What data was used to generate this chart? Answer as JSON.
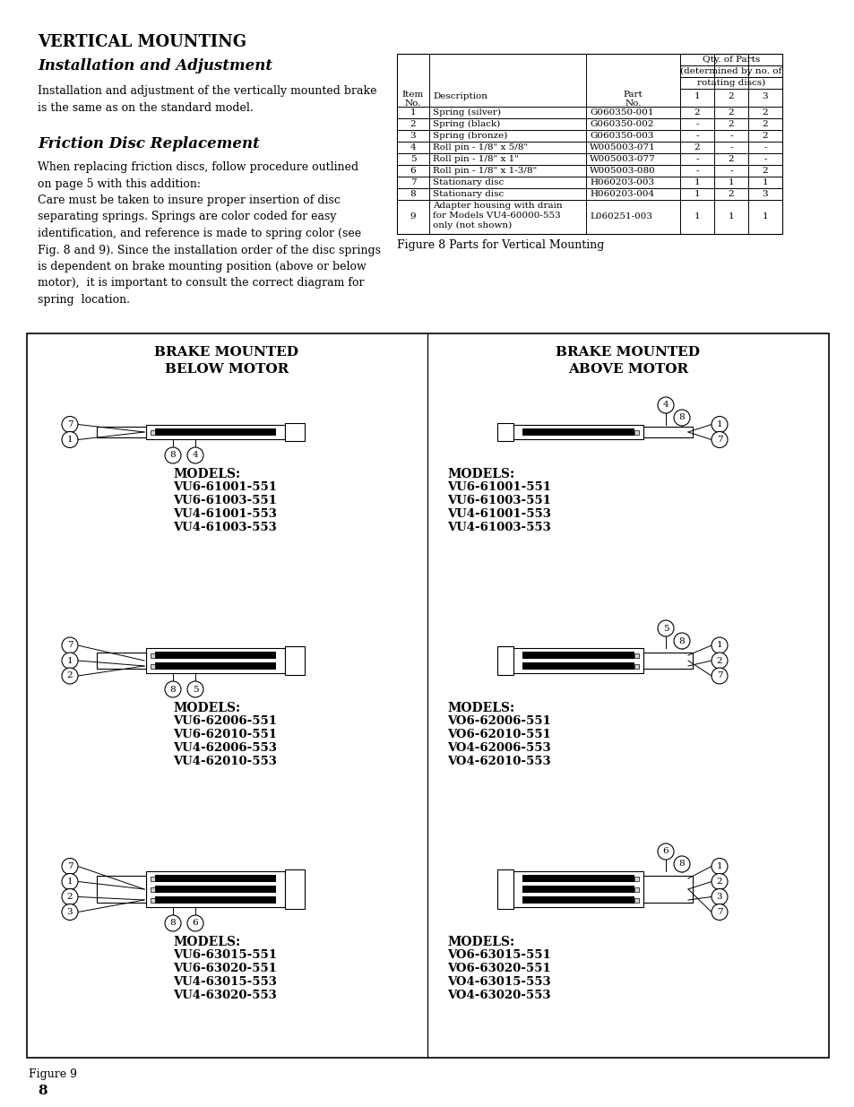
{
  "page_bg": "#ffffff",
  "title1": "VERTICAL MOUNTING",
  "title2": "Installation and Adjustment",
  "para1": "Installation and adjustment of the vertically mounted brake\nis the same as on the standard model.",
  "friction_title": "Friction Disc Replacement",
  "friction_para": "When replacing friction discs, follow procedure outlined\non page 5 with this addition:\nCare must be taken to insure proper insertion of disc\nseparating springs. Springs are color coded for easy\nidentification, and reference is made to spring color (see\nFig. 8 and 9). Since the installation order of the disc springs\nis dependent on brake mounting position (above or below\nmotor),  it is important to consult the correct diagram for\nspring  location.",
  "table_rows": [
    [
      "1",
      "Spring (silver)",
      "G060350-001",
      "2",
      "2",
      "2"
    ],
    [
      "2",
      "Spring (black)",
      "G060350-002",
      "-",
      "2",
      "2"
    ],
    [
      "3",
      "Spring (bronze)",
      "G060350-003",
      "-",
      "-",
      "2"
    ],
    [
      "4",
      "Roll pin - 1/8\" x 5/8\"",
      "W005003-071",
      "2",
      "-",
      "-"
    ],
    [
      "5",
      "Roll pin - 1/8\" x 1\"",
      "W005003-077",
      "-",
      "2",
      "-"
    ],
    [
      "6",
      "Roll pin - 1/8\" x 1-3/8\"",
      "W005003-080",
      "-",
      "-",
      "2"
    ],
    [
      "7",
      "Stationary disc",
      "H060203-003",
      "1",
      "1",
      "1"
    ],
    [
      "8",
      "Stationary disc",
      "H060203-004",
      "1",
      "2",
      "3"
    ],
    [
      "9",
      "Adapter housing with drain\nfor Models VU4-60000-553\nonly (not shown)",
      "L060251-003",
      "1",
      "1",
      "1"
    ]
  ],
  "fig8_caption": "Figure 8 Parts for Vertical Mounting",
  "fig9_caption": "Figure 9",
  "page_number": "8",
  "left_groups": [
    {
      "callouts_left": [
        "7",
        "1"
      ],
      "callout_spring": "4",
      "models": [
        "VU6-61001-551",
        "VU6-61003-551",
        "VU4-61001-553",
        "VU4-61003-553"
      ],
      "disc_count": 1
    },
    {
      "callouts_left": [
        "7",
        "1",
        "2"
      ],
      "callout_spring": "5",
      "models": [
        "VU6-62006-551",
        "VU6-62010-551",
        "VU4-62006-553",
        "VU4-62010-553"
      ],
      "disc_count": 2
    },
    {
      "callouts_left": [
        "7",
        "1",
        "2",
        "3"
      ],
      "callout_spring": "6",
      "models": [
        "VU6-63015-551",
        "VU6-63020-551",
        "VU4-63015-553",
        "VU4-63020-553"
      ],
      "disc_count": 3
    }
  ],
  "right_groups": [
    {
      "callout_top1": "4",
      "callout_top2": "8",
      "callouts_right": [
        "1",
        "7"
      ],
      "models": [
        "VU6-61001-551",
        "VU6-61003-551",
        "VU4-61001-553",
        "VU4-61003-553"
      ],
      "disc_count": 1
    },
    {
      "callout_top1": "5",
      "callout_top2": "8",
      "callouts_right": [
        "1",
        "2",
        "7"
      ],
      "models": [
        "VO6-62006-551",
        "VO6-62010-551",
        "VO4-62006-553",
        "VO4-62010-553"
      ],
      "disc_count": 2
    },
    {
      "callout_top1": "6",
      "callout_top2": "8",
      "callouts_right": [
        "1",
        "2",
        "3",
        "7"
      ],
      "models": [
        "VO6-63015-551",
        "VO6-63020-551",
        "VO4-63015-553",
        "VO4-63020-553"
      ],
      "disc_count": 3
    }
  ]
}
